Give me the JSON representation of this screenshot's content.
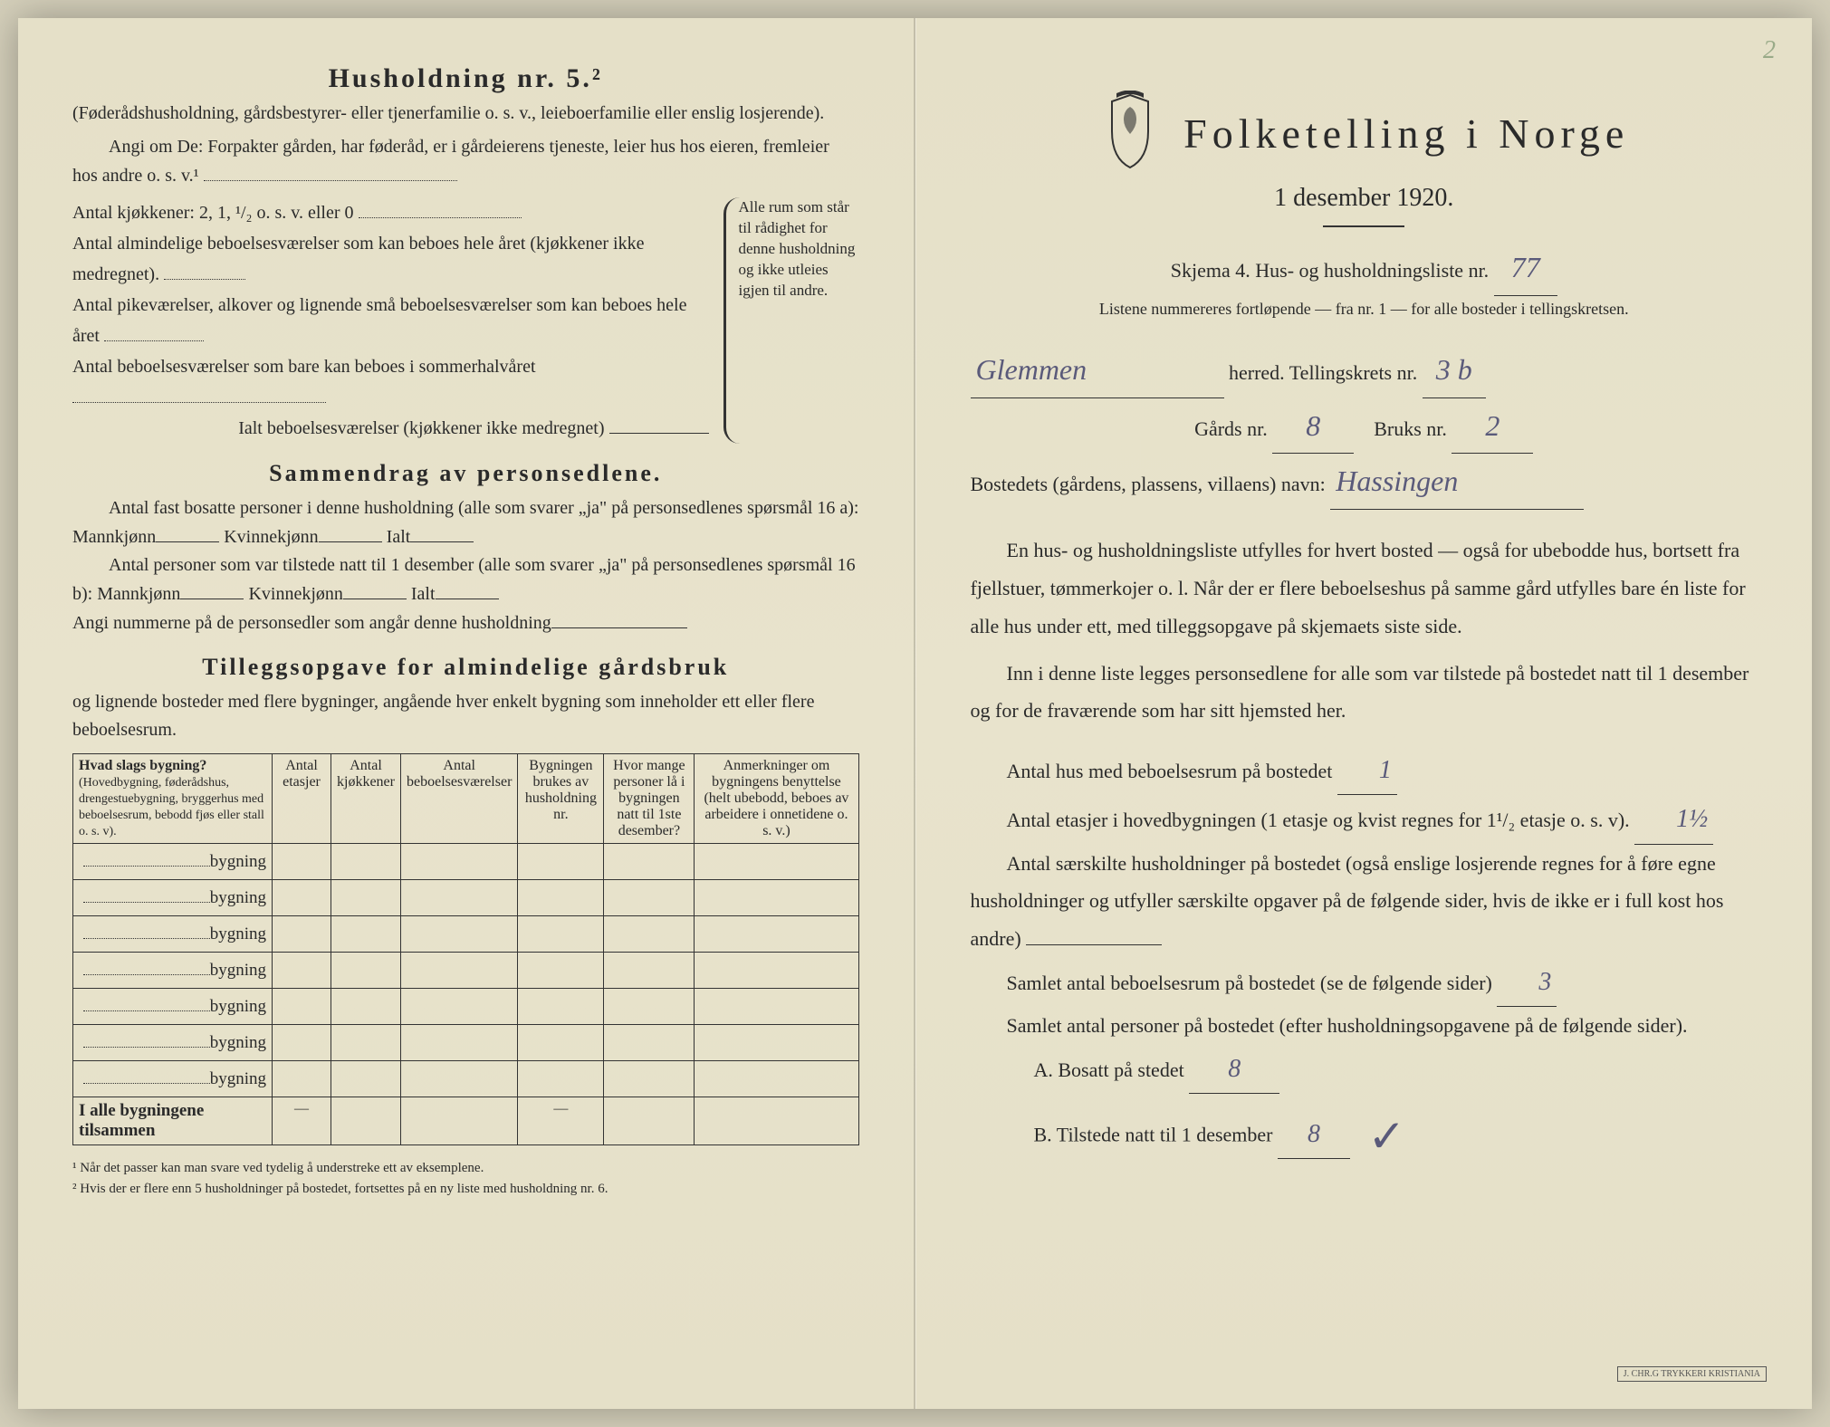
{
  "left": {
    "h2": "Husholdning nr. 5.²",
    "p1": "(Føderådshusholdning, gårdsbestyrer- eller tjenerfamilie o. s. v., leieboerfamilie eller enslig losjerende).",
    "p2_a": "Angi om De: Forpakter gården, har føderåd, er i gårdeierens tjeneste, leier hus hos eieren, fremleier hos andre o. s. v.¹",
    "k1": "Antal kjøkkener: 2, 1, ¹/₂ o. s. v. eller 0",
    "k2": "Antal almindelige beboelsesværelser som kan beboes hele året (kjøkkener ikke medregnet).",
    "k3": "Antal pikeværelser, alkover og lignende små beboelsesværelser som kan beboes hele året",
    "k4": "Antal beboelsesværelser som bare kan beboes i sommerhalvåret",
    "k5": "Ialt beboelsesværelser (kjøkkener ikke medregnet)",
    "brace_text": "Alle rum som står til rådighet for denne husholdning og ikke utleies igjen til andre.",
    "h3a": "Sammendrag av personsedlene.",
    "s1": "Antal fast bosatte personer i denne husholdning (alle som svarer „ja\" på personsedlenes spørsmål 16 a): Mannkjønn",
    "s1b": "Kvinnekjønn",
    "s1c": "Ialt",
    "s2": "Antal personer som var tilstede natt til 1 desember (alle som svarer „ja\" på personsedlenes spørsmål 16 b): Mannkjønn",
    "s3": "Angi nummerne på de personsedler som angår denne husholdning",
    "h3b": "Tilleggsopgave for almindelige gårdsbruk",
    "t_sub": "og lignende bosteder med flere bygninger, angående hver enkelt bygning som inneholder ett eller flere beboelsesrum.",
    "th1": "Hvad slags bygning?",
    "th1_sub": "(Hovedbygning, føderådshus, drengestuebygning, bryggerhus med beboelsesrum, bebodd fjøs eller stall o. s. v).",
    "th2": "Antal etasjer",
    "th3": "Antal kjøkkener",
    "th4": "Antal beboelsesværelser",
    "th5": "Bygningen brukes av husholdning nr.",
    "th6": "Hvor mange personer lå i bygningen natt til 1ste desember?",
    "th7": "Anmerkninger om bygningens benyttelse (helt ubebodd, beboes av arbeidere i onnetidene o. s. v.)",
    "row_label": "bygning",
    "sum_row": "I alle bygningene tilsammen",
    "fn1": "¹  Når det passer kan man svare ved tydelig å understreke ett av eksemplene.",
    "fn2": "²  Hvis der er flere enn 5 husholdninger på bostedet, fortsettes på en ny liste med husholdning nr. 6."
  },
  "right": {
    "pgnum": "2",
    "title": "Folketelling i Norge",
    "date": "1 desember 1920.",
    "skjema": "Skjema 4.  Hus- og husholdningsliste nr.",
    "skjema_val": "77",
    "listene": "Listene nummereres fortløpende — fra nr. 1 — for alle bosteder i tellingskretsen.",
    "herred_val": "Glemmen",
    "herred_lbl": "herred.   Tellingskrets nr.",
    "krets_val": "3 b",
    "gards_lbl": "Gårds nr.",
    "gards_val": "8",
    "bruks_lbl": "Bruks nr.",
    "bruks_val": "2",
    "bosted_lbl": "Bostedets (gårdens, plassens, villaens) navn:",
    "bosted_val": "Hassingen",
    "p1": "En hus- og husholdningsliste utfylles for hvert bosted — også for ubebodde hus, bortsett fra fjellstuer, tømmerkojer o. l.  Når der er flere beboelseshus på samme gård utfylles bare én liste for alle hus under ett, med tilleggsopgave på skjemaets siste side.",
    "p2": "Inn i denne liste legges personsedlene for alle som var tilstede på bostedet natt til 1 desember og for de fraværende som har sitt hjemsted her.",
    "q1": "Antal hus med beboelsesrum på bostedet",
    "q1_val": "1",
    "q2": "Antal etasjer i hovedbygningen (1 etasje og kvist regnes for 1¹/₂ etasje o. s. v).",
    "q2_val": "1½",
    "q3": "Antal særskilte husholdninger på bostedet (også enslige losjerende regnes for å føre egne husholdninger og utfyller særskilte opgaver på de følgende sider, hvis de ikke er i full kost hos andre)",
    "q4": "Samlet antal beboelsesrum på bostedet (se de følgende sider)",
    "q4_val": "3",
    "q5": "Samlet antal personer på bostedet (efter husholdningsopgavene på de følgende sider).",
    "qA": "A.  Bosatt på stedet",
    "qA_val": "8",
    "qB": "B.  Tilstede natt til 1 desember",
    "qB_val": "8",
    "printer": "J. CHR.G TRYKKERI KRISTIANIA"
  }
}
